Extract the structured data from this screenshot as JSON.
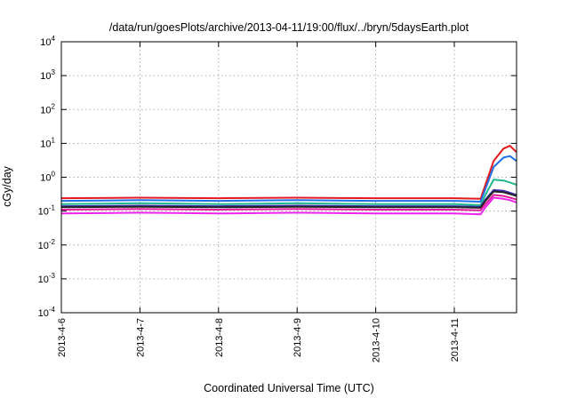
{
  "chart_data": {
    "type": "line",
    "title": "/data/run/goesPlots/archive/2013-04-11/19:00/flux/../bryn/5daysEarth.plot",
    "xlabel": "Coordinated Universal Time (UTC)",
    "ylabel": "cGy/day",
    "y_scale": "log",
    "ylim": [
      0.0001,
      10000
    ],
    "xlim": [
      "2013-04-06T00:00",
      "2013-04-11T19:00"
    ],
    "grid": true,
    "legend": "none",
    "x_ticks": [
      {
        "t": "2013-04-06T00:00",
        "label": "2013-4-6"
      },
      {
        "t": "2013-04-07T00:00",
        "label": "2013-4-7"
      },
      {
        "t": "2013-04-08T00:00",
        "label": "2013-4-8"
      },
      {
        "t": "2013-04-09T00:00",
        "label": "2013-4-9"
      },
      {
        "t": "2013-04-10T00:00",
        "label": "2013-4-10"
      },
      {
        "t": "2013-04-11T00:00",
        "label": "2013-4-11"
      }
    ],
    "y_ticks": [
      {
        "v": 0.0001,
        "base": "10",
        "exp": "-4"
      },
      {
        "v": 0.001,
        "base": "10",
        "exp": "-3"
      },
      {
        "v": 0.01,
        "base": "10",
        "exp": "-2"
      },
      {
        "v": 0.1,
        "base": "10",
        "exp": "-1"
      },
      {
        "v": 1,
        "base": "10",
        "exp": "0"
      },
      {
        "v": 10,
        "base": "10",
        "exp": "1"
      },
      {
        "v": 100,
        "base": "10",
        "exp": "2"
      },
      {
        "v": 1000,
        "base": "10",
        "exp": "3"
      },
      {
        "v": 10000,
        "base": "10",
        "exp": "4"
      }
    ],
    "series": [
      {
        "color": "#e41a1c",
        "x": [
          "2013-04-06T00:00",
          "2013-04-07T00:00",
          "2013-04-08T00:00",
          "2013-04-09T00:00",
          "2013-04-10T00:00",
          "2013-04-11T00:00",
          "2013-04-11T08:00",
          "2013-04-11T09:30",
          "2013-04-11T12:00",
          "2013-04-11T15:00",
          "2013-04-11T17:00",
          "2013-04-11T19:00"
        ],
        "y": [
          0.24,
          0.25,
          0.24,
          0.25,
          0.24,
          0.24,
          0.23,
          0.6,
          3.0,
          7.0,
          8.5,
          5.5
        ]
      },
      {
        "color": "#1e6fe8",
        "x": [
          "2013-04-06T00:00",
          "2013-04-07T00:00",
          "2013-04-08T00:00",
          "2013-04-09T00:00",
          "2013-04-10T00:00",
          "2013-04-11T00:00",
          "2013-04-11T08:00",
          "2013-04-11T09:30",
          "2013-04-11T12:00",
          "2013-04-11T15:00",
          "2013-04-11T17:00",
          "2013-04-11T19:00"
        ],
        "y": [
          0.2,
          0.21,
          0.2,
          0.21,
          0.2,
          0.2,
          0.19,
          0.45,
          2.0,
          3.8,
          4.2,
          3.0
        ]
      },
      {
        "color": "#1fb88c",
        "x": [
          "2013-04-06T00:00",
          "2013-04-07T00:00",
          "2013-04-08T00:00",
          "2013-04-09T00:00",
          "2013-04-10T00:00",
          "2013-04-11T00:00",
          "2013-04-11T08:00",
          "2013-04-11T09:30",
          "2013-04-11T12:00",
          "2013-04-11T15:00",
          "2013-04-11T17:00",
          "2013-04-11T19:00"
        ],
        "y": [
          0.16,
          0.17,
          0.16,
          0.17,
          0.16,
          0.16,
          0.15,
          0.3,
          0.85,
          0.8,
          0.7,
          0.6
        ]
      },
      {
        "color": "#3b2fb0",
        "x": [
          "2013-04-06T00:00",
          "2013-04-07T00:00",
          "2013-04-08T00:00",
          "2013-04-09T00:00",
          "2013-04-10T00:00",
          "2013-04-11T00:00",
          "2013-04-11T08:00",
          "2013-04-11T09:30",
          "2013-04-11T12:00",
          "2013-04-11T15:00",
          "2013-04-11T17:00",
          "2013-04-11T19:00"
        ],
        "y": [
          0.14,
          0.145,
          0.14,
          0.145,
          0.14,
          0.14,
          0.135,
          0.22,
          0.42,
          0.4,
          0.35,
          0.3
        ]
      },
      {
        "color": "#222222",
        "x": [
          "2013-04-06T00:00",
          "2013-04-07T00:00",
          "2013-04-08T00:00",
          "2013-04-09T00:00",
          "2013-04-10T00:00",
          "2013-04-11T00:00",
          "2013-04-11T08:00",
          "2013-04-11T09:30",
          "2013-04-11T12:00",
          "2013-04-11T15:00",
          "2013-04-11T17:00",
          "2013-04-11T19:00"
        ],
        "y": [
          0.13,
          0.135,
          0.13,
          0.135,
          0.13,
          0.13,
          0.125,
          0.2,
          0.38,
          0.36,
          0.32,
          0.28
        ]
      },
      {
        "color": "#e41a9c",
        "x": [
          "2013-04-06T00:00",
          "2013-04-07T00:00",
          "2013-04-08T00:00",
          "2013-04-09T00:00",
          "2013-04-10T00:00",
          "2013-04-11T00:00",
          "2013-04-11T08:00",
          "2013-04-11T09:30",
          "2013-04-11T12:00",
          "2013-04-11T15:00",
          "2013-04-11T17:00",
          "2013-04-11T19:00"
        ],
        "y": [
          0.11,
          0.115,
          0.11,
          0.115,
          0.11,
          0.11,
          0.105,
          0.16,
          0.3,
          0.28,
          0.25,
          0.22
        ]
      },
      {
        "color": "#ee22ee",
        "x": [
          "2013-04-06T00:00",
          "2013-04-07T00:00",
          "2013-04-08T00:00",
          "2013-04-09T00:00",
          "2013-04-10T00:00",
          "2013-04-11T00:00",
          "2013-04-11T08:00",
          "2013-04-11T09:30",
          "2013-04-11T12:00",
          "2013-04-11T15:00",
          "2013-04-11T17:00",
          "2013-04-11T19:00"
        ],
        "y": [
          0.085,
          0.09,
          0.085,
          0.09,
          0.085,
          0.085,
          0.08,
          0.13,
          0.25,
          0.23,
          0.21,
          0.18
        ]
      }
    ]
  }
}
